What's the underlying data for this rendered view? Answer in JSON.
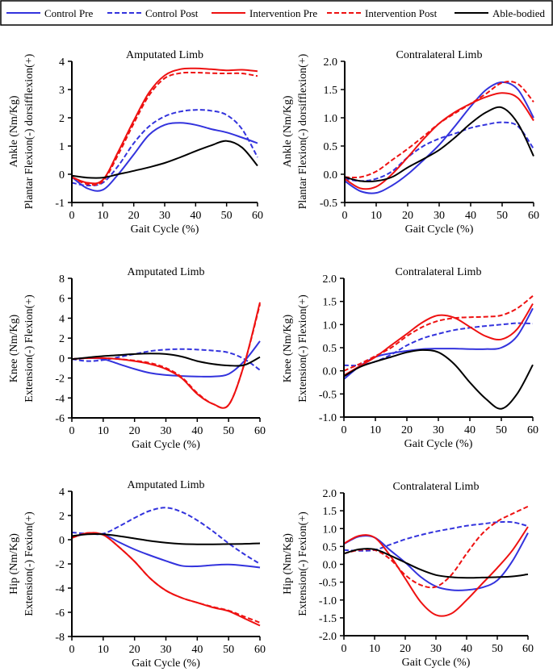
{
  "legend": {
    "placement": "top",
    "items": [
      {
        "name": "Control Pre",
        "color": "#3333dd",
        "dash": false
      },
      {
        "name": "Control Post",
        "color": "#3333dd",
        "dash": true
      },
      {
        "name": "Intervention Pre",
        "color": "#ee1111",
        "dash": false
      },
      {
        "name": "Intervention Post",
        "color": "#ee1111",
        "dash": true
      },
      {
        "name": "Able-bodied",
        "color": "#000000",
        "dash": false
      }
    ]
  },
  "chart_data": [
    {
      "type": "line",
      "title": "Amputated Limb",
      "xlabel": "Gait Cycle (%)",
      "ylabel": [
        "Ankle (Nm/Kg)",
        "Plantar Flexion(-) dorsifflexion(+)"
      ],
      "xlim": [
        0,
        60
      ],
      "ylim": [
        -1,
        4
      ],
      "xticks": [
        "0",
        "10",
        "20",
        "30",
        "40",
        "50",
        "60"
      ],
      "yticks": [
        "-1",
        "0",
        "1",
        "2",
        "3",
        "4"
      ],
      "grid": false,
      "x": [
        0,
        5,
        10,
        15,
        20,
        25,
        30,
        35,
        40,
        45,
        50,
        55,
        60
      ],
      "series": [
        {
          "name": "Control Pre",
          "values": [
            -0.1,
            -0.5,
            -0.55,
            0.0,
            0.7,
            1.4,
            1.75,
            1.82,
            1.75,
            1.6,
            1.48,
            1.3,
            1.1
          ]
        },
        {
          "name": "Control Post",
          "values": [
            -0.3,
            -0.4,
            -0.3,
            0.3,
            1.1,
            1.7,
            2.05,
            2.22,
            2.28,
            2.25,
            2.1,
            1.6,
            0.6
          ]
        },
        {
          "name": "Intervention Pre",
          "values": [
            -0.1,
            -0.3,
            -0.2,
            0.8,
            1.9,
            2.9,
            3.5,
            3.72,
            3.75,
            3.72,
            3.68,
            3.7,
            3.65
          ]
        },
        {
          "name": "Intervention Post",
          "values": [
            -0.1,
            -0.35,
            -0.25,
            0.7,
            1.8,
            2.8,
            3.4,
            3.58,
            3.6,
            3.58,
            3.57,
            3.57,
            3.48
          ]
        },
        {
          "name": "Able-bodied",
          "values": [
            -0.05,
            -0.12,
            -0.12,
            0.0,
            0.12,
            0.25,
            0.4,
            0.6,
            0.82,
            1.02,
            1.18,
            0.95,
            0.3
          ]
        }
      ]
    },
    {
      "type": "line",
      "title": "Contralateral Limb",
      "xlabel": "Gait Cycle (%)",
      "ylabel": [
        "Ankle (Nm/Kg)",
        "Plantar Flexion(-) dorsifflexion(+)"
      ],
      "xlim": [
        0,
        60
      ],
      "ylim": [
        -0.5,
        2.0
      ],
      "xticks": [
        "0",
        "10",
        "20",
        "30",
        "40",
        "50",
        "60"
      ],
      "yticks": [
        "-0.5",
        "0.0",
        "0.5",
        "1.0",
        "1.5",
        "2.0"
      ],
      "grid": false,
      "x": [
        0,
        5,
        10,
        15,
        20,
        25,
        30,
        35,
        40,
        45,
        50,
        55,
        60
      ],
      "series": [
        {
          "name": "Control Pre",
          "values": [
            -0.12,
            -0.3,
            -0.33,
            -0.2,
            0.0,
            0.25,
            0.52,
            0.85,
            1.2,
            1.5,
            1.63,
            1.5,
            1.0
          ]
        },
        {
          "name": "Control Post",
          "values": [
            -0.08,
            -0.12,
            -0.08,
            0.05,
            0.3,
            0.5,
            0.63,
            0.72,
            0.82,
            0.88,
            0.92,
            0.85,
            0.45
          ]
        },
        {
          "name": "Intervention Pre",
          "values": [
            -0.08,
            -0.25,
            -0.22,
            0.0,
            0.3,
            0.62,
            0.9,
            1.1,
            1.25,
            1.37,
            1.44,
            1.35,
            0.95
          ]
        },
        {
          "name": "Intervention Post",
          "values": [
            -0.05,
            -0.05,
            0.05,
            0.25,
            0.45,
            0.67,
            0.9,
            1.08,
            1.25,
            1.43,
            1.62,
            1.6,
            1.28
          ]
        },
        {
          "name": "Able-bodied",
          "values": [
            -0.05,
            -0.12,
            -0.12,
            -0.05,
            0.12,
            0.27,
            0.43,
            0.65,
            0.9,
            1.1,
            1.18,
            0.9,
            0.32
          ]
        }
      ]
    },
    {
      "type": "line",
      "title": "Amputated Limb",
      "xlabel": "Gait Cycle (%)",
      "ylabel": [
        "Knee (Nm/Kg)",
        "Extension(-) Flexion(+)"
      ],
      "xlim": [
        0,
        60
      ],
      "ylim": [
        -6,
        8
      ],
      "xticks": [
        "0",
        "10",
        "20",
        "30",
        "40",
        "50",
        "60"
      ],
      "yticks": [
        "-6",
        "-4",
        "-2",
        "0",
        "2",
        "4",
        "6",
        "8"
      ],
      "grid": false,
      "x": [
        0,
        5,
        10,
        15,
        20,
        25,
        30,
        35,
        40,
        45,
        50,
        55,
        60
      ],
      "series": [
        {
          "name": "Control Pre",
          "values": [
            -0.1,
            0.0,
            -0.1,
            -0.6,
            -1.1,
            -1.5,
            -1.7,
            -1.8,
            -1.85,
            -1.85,
            -1.6,
            -0.3,
            1.7
          ]
        },
        {
          "name": "Control Post",
          "values": [
            -0.1,
            -0.3,
            -0.2,
            0.1,
            0.4,
            0.7,
            0.85,
            0.9,
            0.85,
            0.75,
            0.55,
            -0.1,
            -1.2
          ]
        },
        {
          "name": "Intervention Pre",
          "values": [
            -0.1,
            0.0,
            0.0,
            -0.1,
            -0.3,
            -0.6,
            -1.1,
            -2.0,
            -3.6,
            -4.6,
            -4.7,
            -0.6,
            5.6
          ]
        },
        {
          "name": "Intervention Post",
          "values": [
            -0.1,
            0.0,
            0.0,
            -0.1,
            -0.25,
            -0.5,
            -1.0,
            -1.9,
            -3.5,
            -4.6,
            -4.7,
            -0.6,
            5.4
          ]
        },
        {
          "name": "Able-bodied",
          "values": [
            -0.1,
            0.05,
            0.2,
            0.3,
            0.4,
            0.45,
            0.4,
            0.15,
            -0.3,
            -0.6,
            -0.75,
            -0.7,
            0.1
          ]
        }
      ]
    },
    {
      "type": "line",
      "title": "Contralateral Limb",
      "xlabel": "Gait Cycle (%)",
      "ylabel": [
        "Knee (Nm/Kg)",
        "Extension(-) Flexion(+)"
      ],
      "xlim": [
        0,
        60
      ],
      "ylim": [
        -1.0,
        2.0
      ],
      "xticks": [
        "0",
        "10",
        "20",
        "30",
        "40",
        "50",
        "60"
      ],
      "yticks": [
        "-1.0",
        "-0.5",
        "0.0",
        "0.5",
        "1.0",
        "1.5",
        "2.0"
      ],
      "grid": false,
      "x": [
        0,
        5,
        10,
        15,
        20,
        25,
        30,
        35,
        40,
        45,
        50,
        55,
        60
      ],
      "series": [
        {
          "name": "Control Pre",
          "values": [
            -0.18,
            0.1,
            0.3,
            0.38,
            0.43,
            0.47,
            0.48,
            0.48,
            0.47,
            0.47,
            0.5,
            0.75,
            1.35
          ]
        },
        {
          "name": "Control Post",
          "values": [
            0.12,
            0.12,
            0.2,
            0.35,
            0.55,
            0.7,
            0.8,
            0.88,
            0.93,
            0.97,
            1.0,
            1.03,
            1.02
          ]
        },
        {
          "name": "Intervention Pre",
          "values": [
            -0.1,
            0.1,
            0.3,
            0.55,
            0.8,
            1.05,
            1.2,
            1.15,
            0.95,
            0.75,
            0.68,
            0.9,
            1.45
          ]
        },
        {
          "name": "Intervention Post",
          "values": [
            0.0,
            0.15,
            0.32,
            0.5,
            0.75,
            0.95,
            1.08,
            1.14,
            1.16,
            1.17,
            1.2,
            1.35,
            1.62
          ]
        },
        {
          "name": "Able-bodied",
          "values": [
            -0.12,
            0.08,
            0.2,
            0.3,
            0.4,
            0.45,
            0.4,
            0.15,
            -0.25,
            -0.6,
            -0.82,
            -0.5,
            0.13
          ]
        }
      ]
    },
    {
      "type": "line",
      "title": "Amputated Limb",
      "xlabel": "Gait Cycle (%)",
      "ylabel": [
        "Hip (Nm/Kg)",
        "Extension(-) Fexion(+)"
      ],
      "xlim": [
        0,
        60
      ],
      "ylim": [
        -8,
        4
      ],
      "xticks": [
        "0",
        "10",
        "20",
        "30",
        "40",
        "50",
        "60"
      ],
      "yticks": [
        "-8",
        "-6",
        "-4",
        "-2",
        "0",
        "2",
        "4"
      ],
      "grid": false,
      "x": [
        0,
        5,
        10,
        15,
        20,
        25,
        30,
        35,
        40,
        45,
        50,
        55,
        60
      ],
      "series": [
        {
          "name": "Control Pre",
          "values": [
            0.2,
            0.5,
            0.45,
            -0.2,
            -0.8,
            -1.3,
            -1.75,
            -2.15,
            -2.2,
            -2.1,
            -2.05,
            -2.15,
            -2.3
          ]
        },
        {
          "name": "Control Post",
          "values": [
            0.6,
            0.5,
            0.5,
            1.1,
            1.8,
            2.4,
            2.65,
            2.3,
            1.6,
            0.7,
            -0.3,
            -1.2,
            -2.0
          ]
        },
        {
          "name": "Intervention Pre",
          "values": [
            0.15,
            0.55,
            0.4,
            -0.6,
            -1.8,
            -3.2,
            -4.2,
            -4.8,
            -5.2,
            -5.6,
            -5.9,
            -6.5,
            -7.1
          ]
        },
        {
          "name": "Intervention Post",
          "values": [
            0.15,
            0.55,
            0.4,
            -0.6,
            -1.8,
            -3.2,
            -4.2,
            -4.8,
            -5.2,
            -5.55,
            -5.85,
            -6.35,
            -6.85
          ]
        },
        {
          "name": "Able-bodied",
          "values": [
            0.3,
            0.45,
            0.45,
            0.3,
            0.1,
            -0.1,
            -0.25,
            -0.35,
            -0.38,
            -0.38,
            -0.36,
            -0.34,
            -0.3
          ]
        }
      ]
    },
    {
      "type": "line",
      "title": "Contralateral Limb",
      "xlabel": "Gait Cycle (%)",
      "ylabel": [
        "Hip (Nm/Kg)",
        "Extension(-) Fexion(+)"
      ],
      "xlim": [
        0,
        60
      ],
      "ylim": [
        -2.0,
        2.0
      ],
      "xticks": [
        "0",
        "10",
        "20",
        "30",
        "40",
        "50",
        "60"
      ],
      "yticks": [
        "-2.0",
        "-1.5",
        "-1.0",
        "-0.5",
        "0.0",
        "0.5",
        "1.0",
        "1.5",
        "2.0"
      ],
      "grid": false,
      "x": [
        0,
        5,
        10,
        15,
        20,
        25,
        30,
        35,
        40,
        45,
        50,
        55,
        60
      ],
      "series": [
        {
          "name": "Control Pre",
          "values": [
            0.57,
            0.78,
            0.75,
            0.4,
            0.05,
            -0.35,
            -0.62,
            -0.72,
            -0.72,
            -0.65,
            -0.45,
            0.1,
            0.88
          ]
        },
        {
          "name": "Control Post",
          "values": [
            0.4,
            0.38,
            0.4,
            0.55,
            0.7,
            0.82,
            0.92,
            1.0,
            1.08,
            1.13,
            1.18,
            1.18,
            1.07
          ]
        },
        {
          "name": "Intervention Pre",
          "values": [
            0.58,
            0.8,
            0.75,
            0.25,
            -0.4,
            -1.05,
            -1.42,
            -1.38,
            -1.0,
            -0.55,
            -0.1,
            0.4,
            1.05
          ]
        },
        {
          "name": "Intervention Post",
          "values": [
            0.3,
            0.4,
            0.4,
            0.15,
            -0.3,
            -0.58,
            -0.63,
            -0.3,
            0.3,
            0.85,
            1.2,
            1.42,
            1.62
          ]
        },
        {
          "name": "Able-bodied",
          "values": [
            0.3,
            0.42,
            0.42,
            0.25,
            0.05,
            -0.15,
            -0.3,
            -0.36,
            -0.38,
            -0.37,
            -0.36,
            -0.34,
            -0.28
          ]
        }
      ]
    }
  ]
}
